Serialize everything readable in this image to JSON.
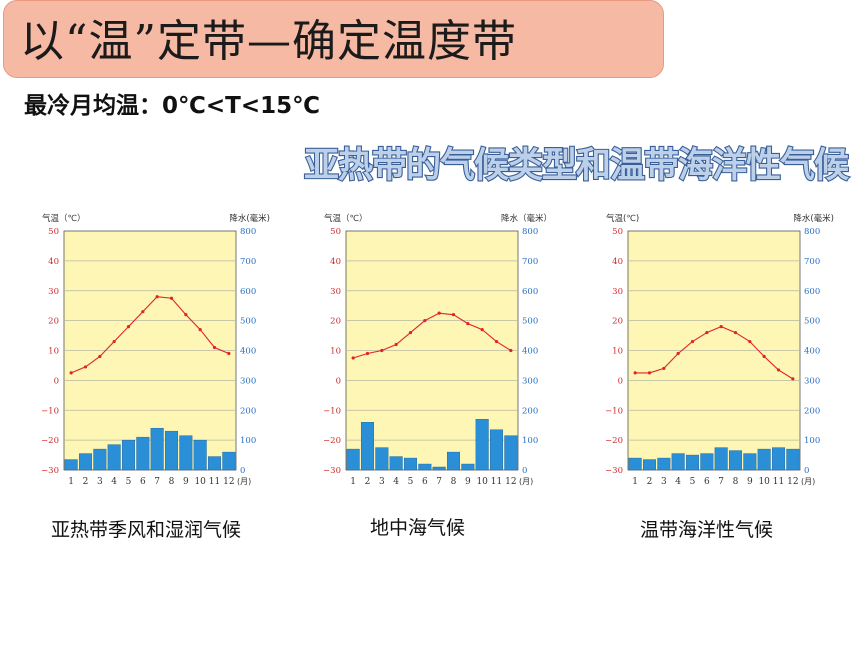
{
  "slide": {
    "title": "以“温”定带—确定温度带",
    "condition": "最冷月均温：0℃<T<15℃",
    "banner": "亚热带的气候类型和温带海洋性气候"
  },
  "captions": [
    "亚热带季风和湿润气候",
    "地中海气候",
    "温带海洋性气候"
  ],
  "colors": {
    "title_bg": "#f6b9a3",
    "banner_fill": "#bcd0ea",
    "banner_stroke": "#3a5f98",
    "plot_bg": "#fdf6b4",
    "temp_line": "#e0242c",
    "bar_fill": "#2a8fd6"
  },
  "chart_data": [
    {
      "type": "bar",
      "ylabel_left": "气温（℃）",
      "ylabel_right": "降水(毫米)",
      "xunit": "(月)",
      "months": [
        "1",
        "2",
        "3",
        "4",
        "5",
        "6",
        "7",
        "8",
        "9",
        "10",
        "11",
        "12"
      ],
      "temp_ylim": [
        -30,
        50
      ],
      "temp_ticks": [
        "50",
        "40",
        "30",
        "20",
        "10",
        "0",
        "−10",
        "−20",
        "−30"
      ],
      "precip_ylim": [
        0,
        800
      ],
      "precip_ticks": [
        "800",
        "700",
        "600",
        "500",
        "400",
        "300",
        "200",
        "100",
        "0"
      ],
      "series": [
        {
          "name": "气温",
          "type": "line",
          "values": [
            2.5,
            4.5,
            8,
            13,
            18,
            23,
            28,
            27.5,
            22,
            17,
            11,
            9
          ]
        },
        {
          "name": "降水",
          "type": "bar",
          "values": [
            35,
            55,
            70,
            85,
            100,
            110,
            140,
            130,
            115,
            100,
            45,
            60
          ]
        }
      ]
    },
    {
      "type": "bar",
      "ylabel_left": "气温（℃）",
      "ylabel_right": "降水（毫米）",
      "xunit": "(月)",
      "months": [
        "1",
        "2",
        "3",
        "4",
        "5",
        "6",
        "7",
        "8",
        "9",
        "10",
        "11",
        "12"
      ],
      "temp_ylim": [
        -30,
        50
      ],
      "temp_ticks": [
        "50",
        "40",
        "30",
        "20",
        "10",
        "0",
        "−10",
        "−20",
        "−30"
      ],
      "precip_ylim": [
        0,
        800
      ],
      "precip_ticks": [
        "800",
        "700",
        "600",
        "500",
        "400",
        "300",
        "200",
        "100",
        "0"
      ],
      "series": [
        {
          "name": "气温",
          "type": "line",
          "values": [
            7.5,
            9,
            10,
            12,
            16,
            20,
            22.5,
            22,
            19,
            17,
            13,
            10
          ]
        },
        {
          "name": "降水",
          "type": "bar",
          "values": [
            70,
            160,
            75,
            45,
            40,
            20,
            10,
            60,
            20,
            170,
            135,
            115
          ]
        }
      ]
    },
    {
      "type": "bar",
      "ylabel_left": "气温(℃)",
      "ylabel_right": "降水(毫米)",
      "xunit": "(月)",
      "months": [
        "1",
        "2",
        "3",
        "4",
        "5",
        "6",
        "7",
        "8",
        "9",
        "10",
        "11",
        "12"
      ],
      "temp_ylim": [
        -30,
        50
      ],
      "temp_ticks": [
        "50",
        "40",
        "30",
        "20",
        "10",
        "0",
        "−10",
        "−20",
        "−30"
      ],
      "precip_ylim": [
        0,
        800
      ],
      "precip_ticks": [
        "800",
        "700",
        "600",
        "500",
        "400",
        "300",
        "200",
        "100",
        "0"
      ],
      "series": [
        {
          "name": "气温",
          "type": "line",
          "values": [
            2.5,
            2.5,
            4,
            9,
            13,
            16,
            18,
            16,
            13,
            8,
            3.5,
            0.5
          ]
        },
        {
          "name": "降水",
          "type": "bar",
          "values": [
            40,
            35,
            40,
            55,
            50,
            55,
            75,
            65,
            55,
            70,
            75,
            70
          ]
        }
      ]
    }
  ]
}
